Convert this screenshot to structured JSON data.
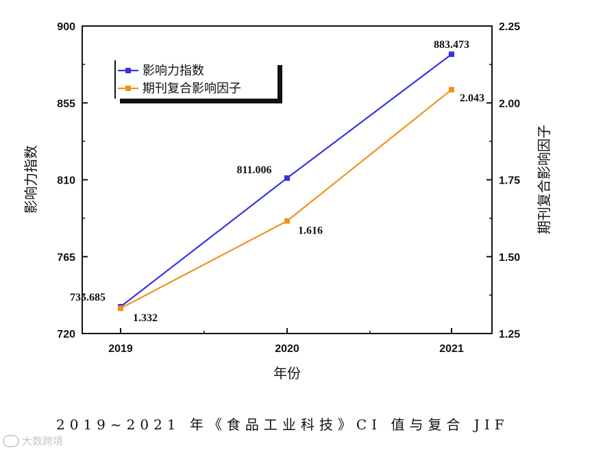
{
  "chart_data": {
    "type": "line",
    "categories": [
      "2019",
      "2020",
      "2021"
    ],
    "series": [
      {
        "name": "影响力指数",
        "axis": "left",
        "color": "#3333dd",
        "values": [
          735.685,
          811.006,
          883.473
        ],
        "labels": [
          "735.685",
          "811.006",
          "883.473"
        ]
      },
      {
        "name": "期刊复合影响因子",
        "axis": "right",
        "color": "#f0921e",
        "values": [
          1.332,
          1.616,
          2.043
        ],
        "labels": [
          "1.332",
          "1.616",
          "2.043"
        ]
      }
    ],
    "xlabel": "年份",
    "ylabel_left": "影响力指数",
    "ylabel_right": "期刊复合影响因子",
    "ylim_left": [
      720,
      900
    ],
    "yticks_left": [
      "720",
      "765",
      "810",
      "855",
      "900"
    ],
    "ylim_right": [
      1.25,
      2.25
    ],
    "yticks_right": [
      "1.25",
      "1.50",
      "1.75",
      "2.00",
      "2.25"
    ],
    "legend_position": "top-left"
  },
  "caption": "2019~2021 年《食品工业科技》CI 值与复合 JIF",
  "watermark": "大数跨境"
}
